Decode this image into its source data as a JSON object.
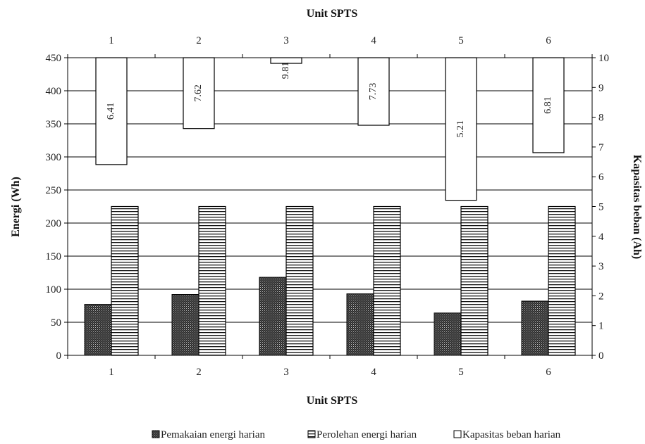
{
  "chart_data": {
    "type": "bar",
    "title": "",
    "xlabel_top": "Unit SPTS",
    "xlabel_bottom": "Unit SPTS",
    "ylabel_left": "Energi (Wh)",
    "ylabel_right": "Kapasitas beban (Ah)",
    "categories": [
      "1",
      "2",
      "3",
      "4",
      "5",
      "6"
    ],
    "yticks_left": [
      "0",
      "50",
      "100",
      "150",
      "200",
      "250",
      "300",
      "350",
      "400",
      "450"
    ],
    "yticks_right": [
      "0",
      "1",
      "2",
      "3",
      "4",
      "5",
      "6",
      "7",
      "8",
      "9",
      "10"
    ],
    "ylim_left": [
      0,
      450
    ],
    "ylim_right": [
      0,
      10
    ],
    "ylim_right_top_axis": [
      10,
      0
    ],
    "grid": true,
    "legend_position": "bottom",
    "series": [
      {
        "name": "Pemakaian energi harian",
        "axis": "left",
        "pattern": "dots",
        "values": [
          77,
          92,
          118,
          93,
          64,
          82
        ]
      },
      {
        "name": "Perolehan energi harian",
        "axis": "left",
        "pattern": "horizontal-lines",
        "values": [
          225,
          225,
          225,
          225,
          225,
          225
        ]
      },
      {
        "name": "Kapasitas beban harian",
        "axis": "right-inverted",
        "pattern": "white",
        "values": [
          6.41,
          7.62,
          9.81,
          7.73,
          5.21,
          6.81
        ],
        "labels": [
          "6.41",
          "7.62",
          "9.81",
          "7.73",
          "5.21",
          "6.81"
        ]
      }
    ]
  }
}
